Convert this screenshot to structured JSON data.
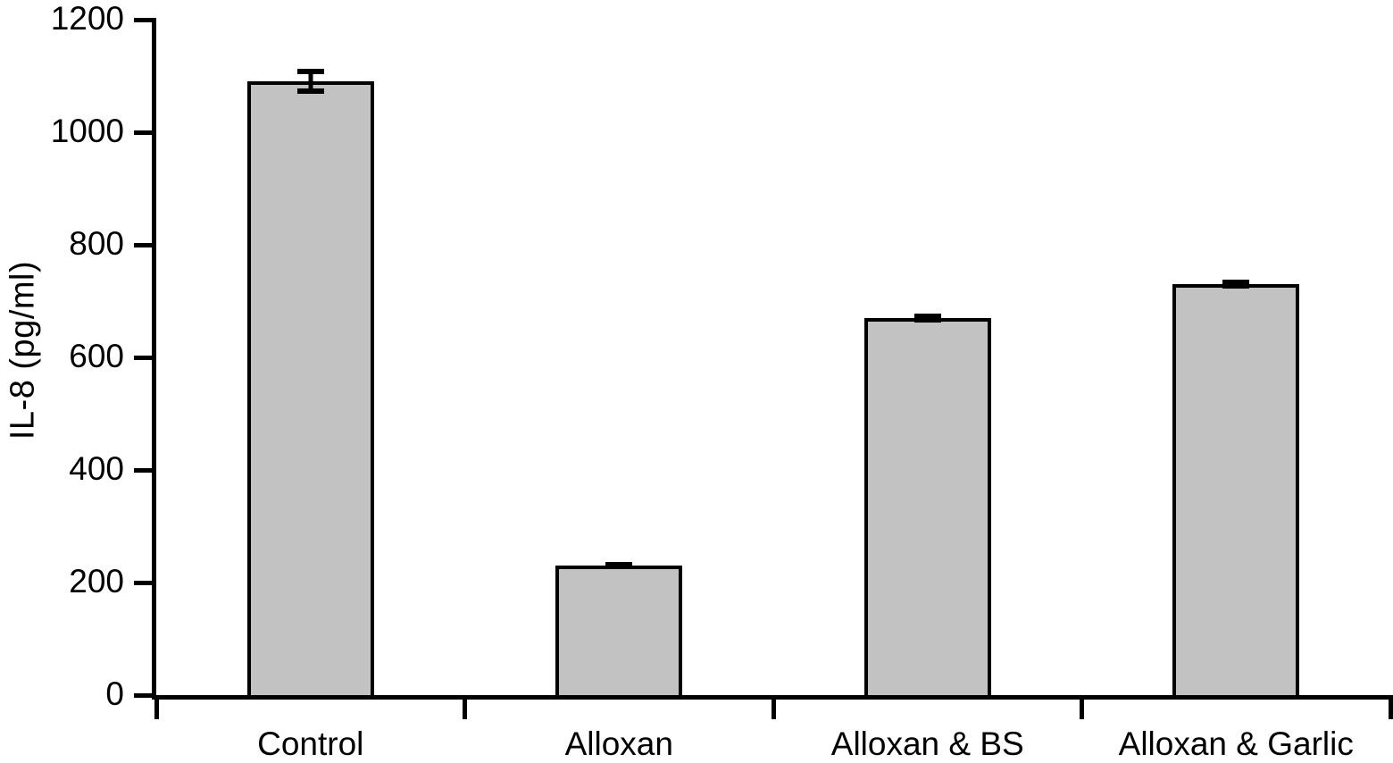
{
  "chart_data": {
    "type": "bar",
    "categories": [
      "Control",
      "Alloxan",
      "Alloxan & BS",
      "Alloxan & Garlic"
    ],
    "values": [
      1090,
      230,
      670,
      730
    ],
    "errors": [
      22,
      5,
      8,
      8
    ],
    "title": "",
    "xlabel": "",
    "ylabel": "IL-8 (pg/ml)",
    "ylim": [
      0,
      1200
    ],
    "ytick_step": 200,
    "ytick_labels": [
      "0",
      "200",
      "400",
      "600",
      "800",
      "1000",
      "1200"
    ],
    "grid": false,
    "legend": "none",
    "bar_fill_color": "#c2c2c2",
    "bar_border_color": "#000000",
    "axis_color": "#000000",
    "text_color": "#000000",
    "background_color": "#ffffff"
  }
}
